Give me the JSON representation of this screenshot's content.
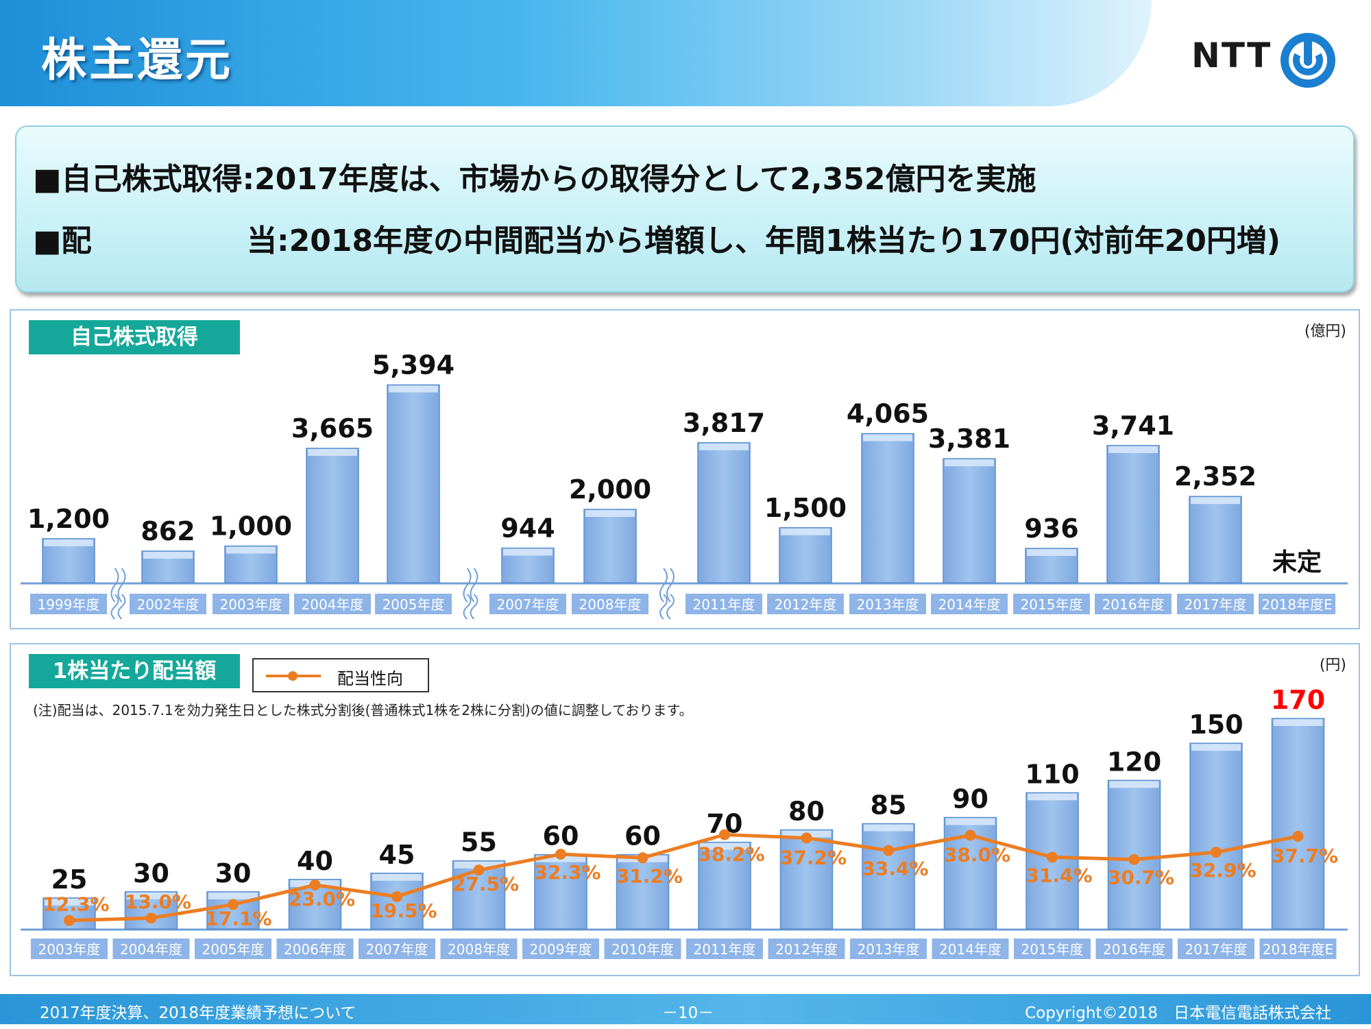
{
  "header": {
    "title": "株主還元",
    "logo_text": "NTT",
    "logo_icon": "ntt-logo-mark"
  },
  "summary": {
    "line1": "■自己株式取得:2017年度は、市場からの取得分として2,352億円を実施",
    "line2_label": "■配",
    "line2_text": "当:2018年度の中間配当から増額し、年間1株当たり170円(対前年20円増)"
  },
  "buyback": {
    "label": "自己株式取得",
    "unit": "(億円)"
  },
  "dividend": {
    "label": "1株当たり配当額",
    "unit": "(円)",
    "legend": "配当性向",
    "note": "(注)配当は、2015.7.1を効力発生日とした株式分割後(普通株式1株を2株に分割)の値に調整しております。"
  },
  "footer": {
    "left": "2017年度決算、2018年度業績予想について",
    "page": "－10－",
    "right": "Copyright©2018　日本電信電話株式会社"
  },
  "colors": {
    "bar": "#9fc4ee",
    "bar_edge": "#5a8fd0",
    "axis_label_bg": "#8eb4e8",
    "line": "#ec7d22",
    "highlight": "#ff0000",
    "panel_label_bg": "#15a89a"
  },
  "chart_data": [
    {
      "type": "bar",
      "title": "自己株式取得",
      "unit": "(億円)",
      "categories": [
        "1999年度",
        "2002年度",
        "2003年度",
        "2004年度",
        "2005年度",
        "2007年度",
        "2008年度",
        "2011年度",
        "2012年度",
        "2013年度",
        "2014年度",
        "2015年度",
        "2016年度",
        "2017年度",
        "2018年度E"
      ],
      "values": [
        1200,
        862,
        1000,
        3665,
        5394,
        944,
        2000,
        3817,
        1500,
        4065,
        3381,
        936,
        3741,
        2352,
        null
      ],
      "value_labels": [
        "1,200",
        "862",
        "1,000",
        "3,665",
        "5,394",
        "944",
        "2,000",
        "3,817",
        "1,500",
        "4,065",
        "3,381",
        "936",
        "3,741",
        "2,352",
        "未定"
      ],
      "axis_breaks_after": [
        "1999年度",
        "2005年度",
        "2008年度"
      ],
      "ylim": [
        0,
        6000
      ]
    },
    {
      "type": "bar",
      "title": "1株当たり配当額",
      "unit": "(円)",
      "categories": [
        "2003年度",
        "2004年度",
        "2005年度",
        "2006年度",
        "2007年度",
        "2008年度",
        "2009年度",
        "2010年度",
        "2011年度",
        "2012年度",
        "2013年度",
        "2014年度",
        "2015年度",
        "2016年度",
        "2017年度",
        "2018年度E"
      ],
      "series": [
        {
          "name": "1株当たり配当額",
          "values": [
            25,
            30,
            30,
            40,
            45,
            55,
            60,
            60,
            70,
            80,
            85,
            90,
            110,
            120,
            150,
            170
          ]
        },
        {
          "name": "配当性向",
          "type": "line",
          "unit": "%",
          "values": [
            12.3,
            13.0,
            17.1,
            23.0,
            19.5,
            27.5,
            32.3,
            31.2,
            38.2,
            37.2,
            33.4,
            38.0,
            31.4,
            30.7,
            32.9,
            37.7
          ],
          "value_labels": [
            "12.3%",
            "13.0%",
            "17.1%",
            "23.0%",
            "19.5%",
            "27.5%",
            "32.3%",
            "31.2%",
            "38.2%",
            "37.2%",
            "33.4%",
            "38.0%",
            "31.4%",
            "30.7%",
            "32.9%",
            "37.7%"
          ]
        }
      ],
      "highlight_last": true,
      "ylim": [
        0,
        180
      ]
    }
  ]
}
